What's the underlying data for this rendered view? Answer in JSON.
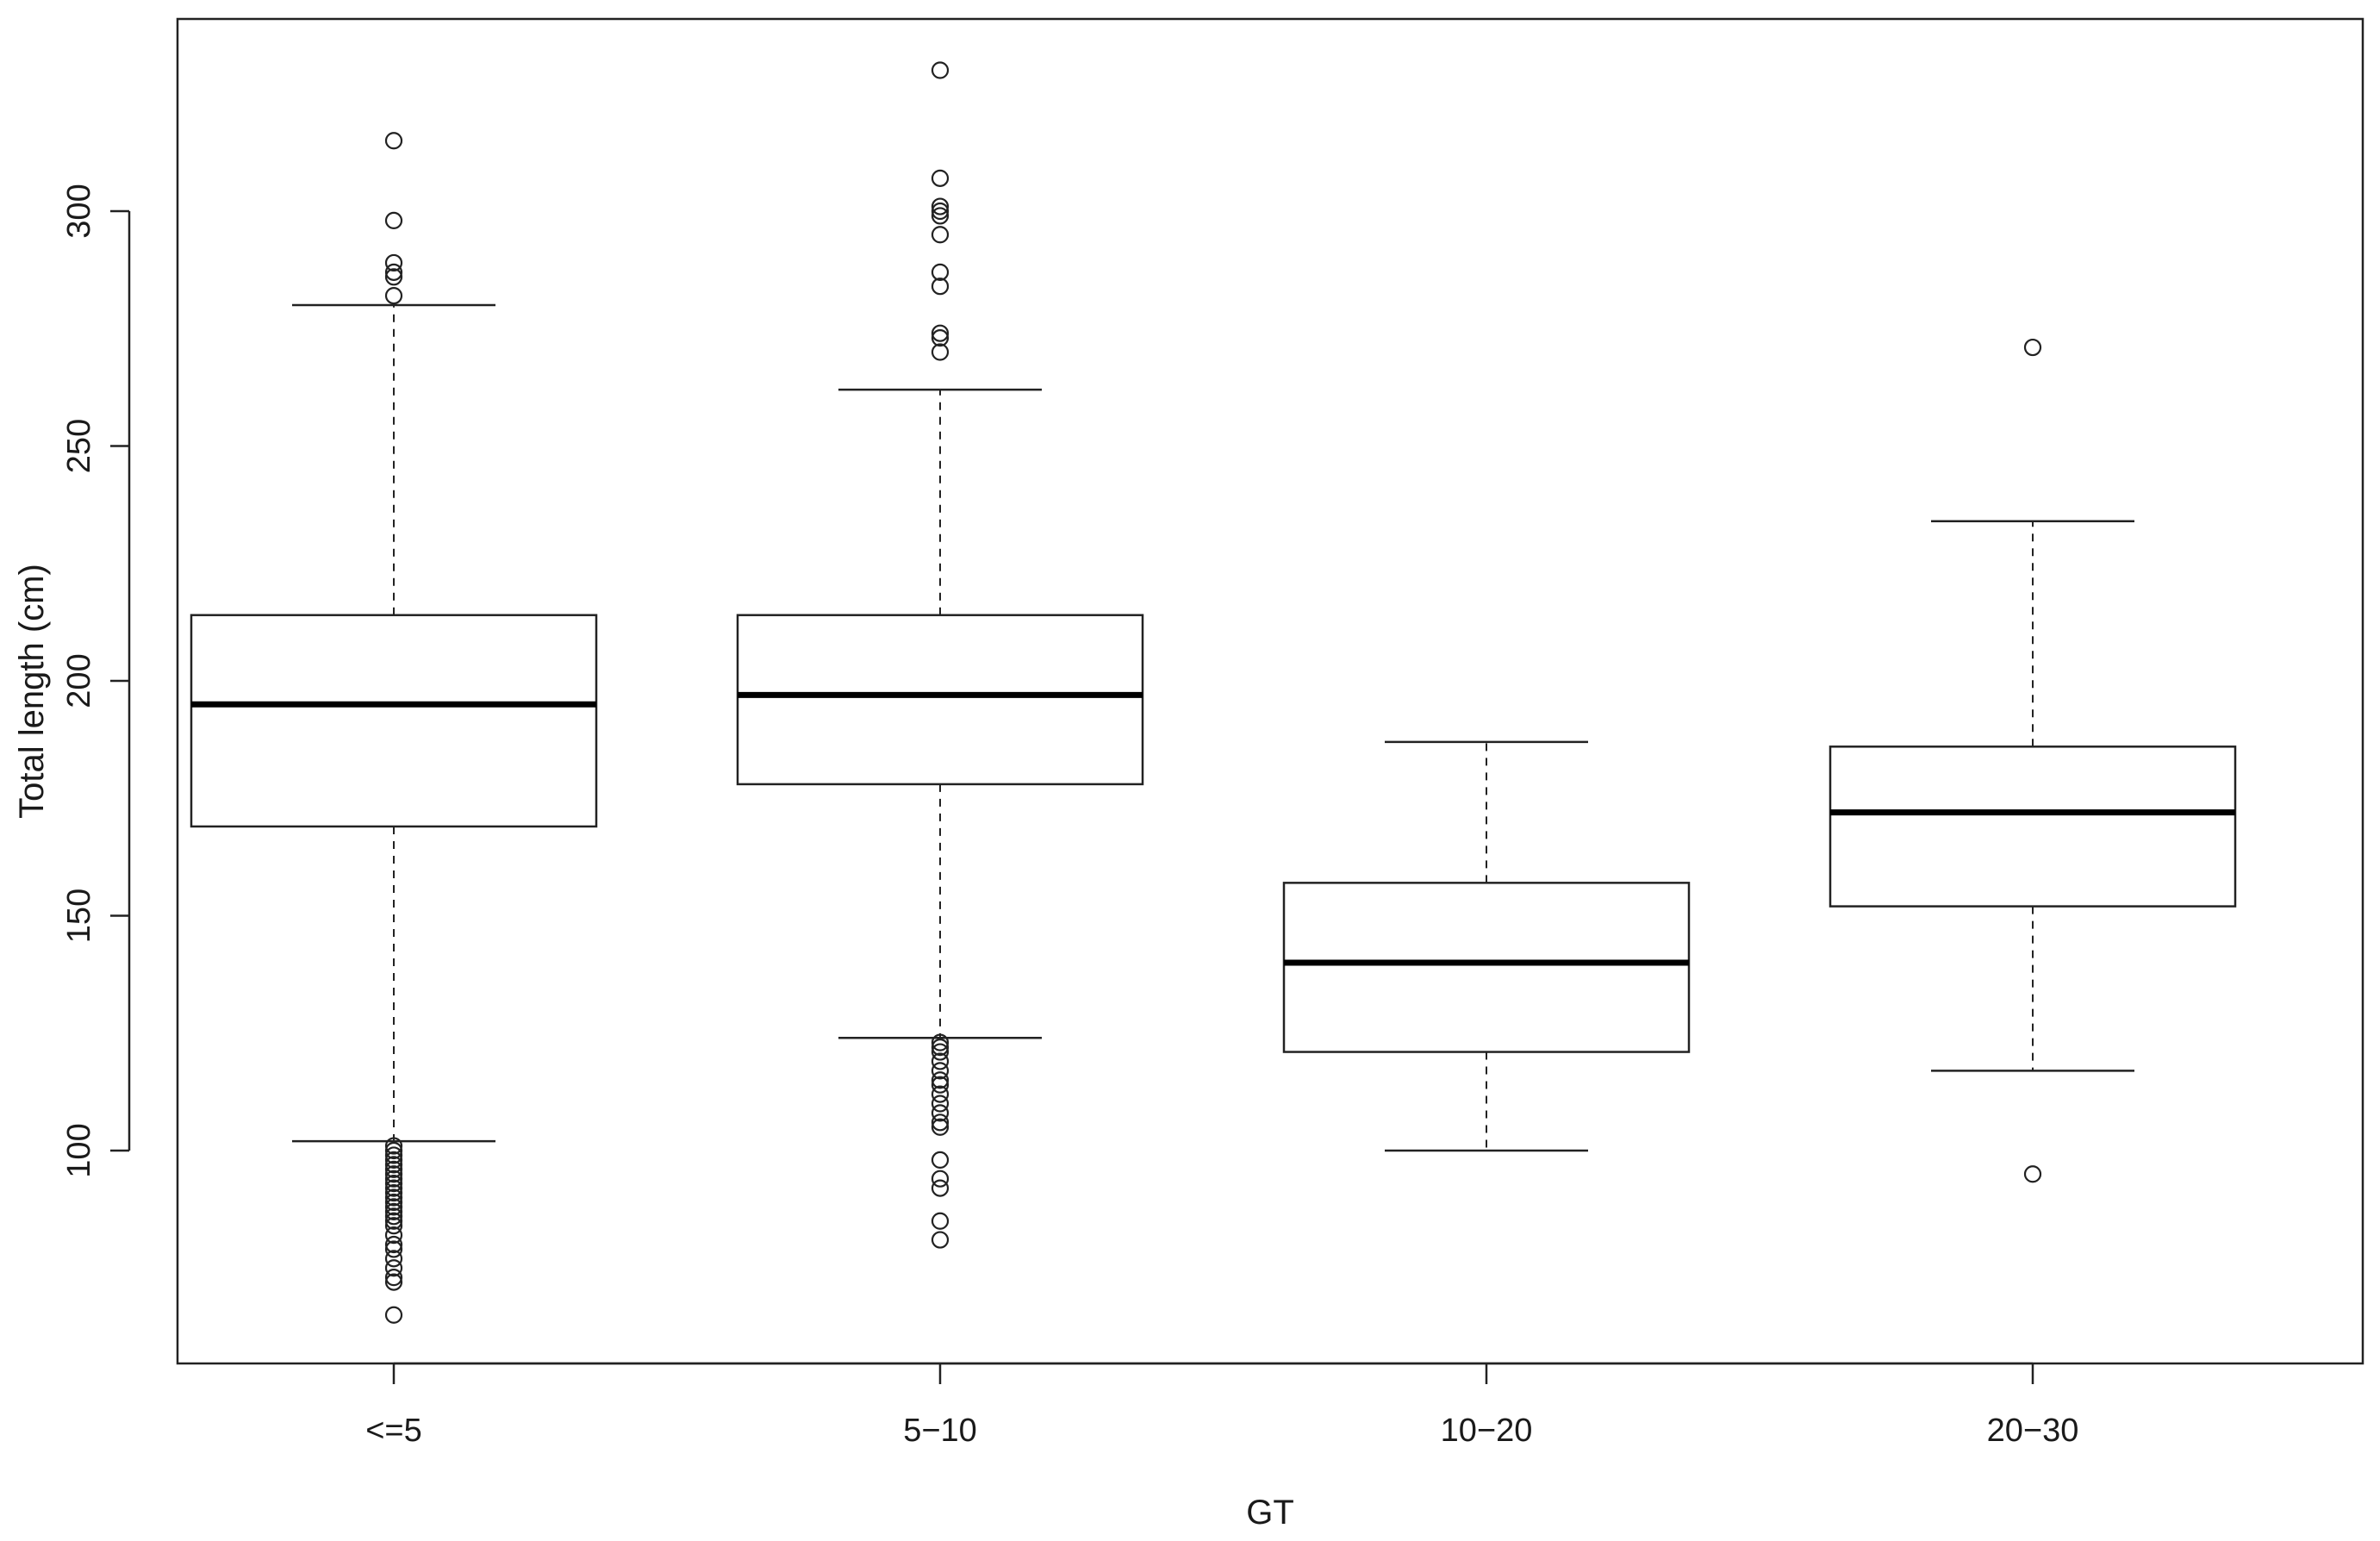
{
  "chart_data": {
    "type": "boxplot",
    "xlabel": "GT",
    "ylabel": "Total length (cm)",
    "categories": [
      "<=5",
      "5−10",
      "10−20",
      "20−30"
    ],
    "yticks": [
      100,
      150,
      200,
      250,
      300
    ],
    "ylim": [
      60,
      335
    ],
    "grid": false,
    "legend": "none",
    "boxes": [
      {
        "category": "<=5",
        "whisker_low": 102,
        "q1": 169,
        "median": 195,
        "q3": 214,
        "whisker_high": 280,
        "outliers": [
          315,
          298,
          289,
          287,
          286,
          282,
          101,
          100,
          99,
          98,
          97,
          96,
          95,
          94,
          93,
          92,
          91,
          90,
          89,
          88,
          87,
          86,
          85,
          84,
          82,
          80,
          79,
          77,
          75,
          73,
          72,
          65
        ]
      },
      {
        "category": "5−10",
        "whisker_low": 124,
        "q1": 178,
        "median": 197,
        "q3": 214,
        "whisker_high": 262,
        "outliers": [
          330,
          307,
          301,
          300,
          299,
          295,
          287,
          284,
          274,
          273,
          270,
          123,
          122,
          121,
          119,
          117,
          115,
          114,
          112,
          110,
          108,
          106,
          105,
          98,
          94,
          92,
          85,
          81
        ]
      },
      {
        "category": "10−20",
        "whisker_low": 100,
        "q1": 121,
        "median": 140,
        "q3": 157,
        "whisker_high": 187,
        "outliers": []
      },
      {
        "category": "20−30",
        "whisker_low": 117,
        "q1": 152,
        "median": 172,
        "q3": 186,
        "whisker_high": 234,
        "outliers": [
          271,
          95
        ]
      }
    ]
  }
}
